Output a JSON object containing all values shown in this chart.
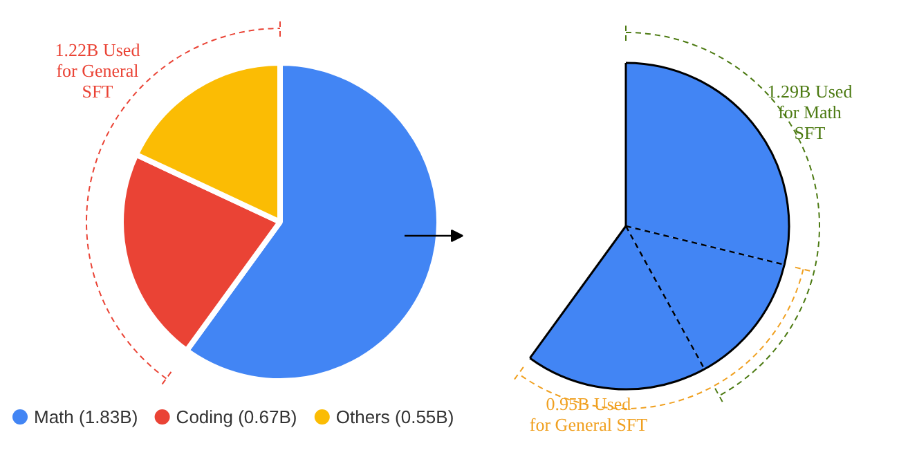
{
  "chart_data": [
    {
      "type": "pie",
      "categories": [
        "Math (1.83B)",
        "Coding (0.67B)",
        "Others (0.55B)"
      ],
      "values": [
        1.83,
        0.67,
        0.55
      ],
      "colors": [
        "#4285f4",
        "#ea4335",
        "#fbbc04"
      ],
      "legend": "bottom",
      "annotations": [
        "1.22B Used\nfor General\nSFT"
      ]
    },
    {
      "type": "pie",
      "categories": [
        null,
        null,
        null
      ],
      "values": [
        48,
        22,
        30
      ],
      "colors": [
        "#4285f4",
        "#4285f4",
        "#4285f4"
      ],
      "annotations": [
        "1.29B Used\nfor Math\nSFT",
        "0.95B Used\nfor General SFT"
      ]
    }
  ]
}
